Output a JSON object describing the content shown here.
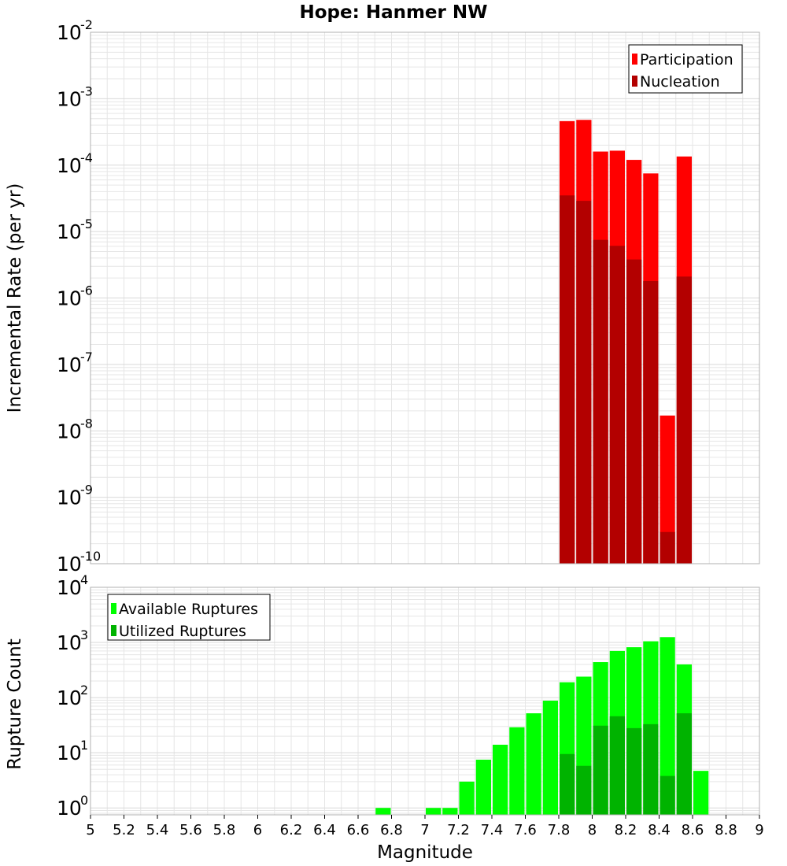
{
  "title": "Hope: Hanmer NW",
  "colors": {
    "participation": "#ff0000",
    "nucleation": "#b30000",
    "available": "#00ff00",
    "utilized": "#00b300",
    "grid": "#e6e6e6",
    "frame": "#b0b0b0"
  },
  "chart_data": [
    {
      "type": "bar",
      "name": "rate-panel",
      "ylabel": "Incremental Rate (per yr)",
      "yscale": "log",
      "ylim": [
        1e-10,
        0.01
      ],
      "xlim": [
        5,
        9
      ],
      "bin_width": 0.1,
      "legend_position": "top-right",
      "y_ticks": [
        {
          "base": "10",
          "exp": "-10",
          "value": 1e-10
        },
        {
          "base": "10",
          "exp": "-9",
          "value": 1e-09
        },
        {
          "base": "10",
          "exp": "-8",
          "value": 1e-08
        },
        {
          "base": "10",
          "exp": "-7",
          "value": 1e-07
        },
        {
          "base": "10",
          "exp": "-6",
          "value": 1e-06
        },
        {
          "base": "10",
          "exp": "-5",
          "value": 1e-05
        },
        {
          "base": "10",
          "exp": "-4",
          "value": 0.0001
        },
        {
          "base": "10",
          "exp": "-3",
          "value": 0.001
        },
        {
          "base": "10",
          "exp": "-2",
          "value": 0.01
        }
      ],
      "series": [
        {
          "name": "Participation",
          "colorKey": "participation",
          "x": [
            7.85,
            7.95,
            8.05,
            8.15,
            8.25,
            8.35,
            8.45,
            8.55
          ],
          "values": [
            0.00046,
            0.00048,
            0.00016,
            0.000165,
            0.00012,
            7.5e-05,
            1.7e-08,
            0.000135
          ]
        },
        {
          "name": "Nucleation",
          "colorKey": "nucleation",
          "x": [
            7.85,
            7.95,
            8.05,
            8.15,
            8.25,
            8.35,
            8.45,
            8.55
          ],
          "values": [
            3.5e-05,
            2.9e-05,
            7.5e-06,
            6.1e-06,
            3.8e-06,
            1.8e-06,
            3e-10,
            2.1e-06
          ]
        }
      ]
    },
    {
      "type": "bar",
      "name": "count-panel",
      "ylabel": "Rupture Count",
      "xlabel": "Magnitude",
      "yscale": "log",
      "ylim": [
        0.75,
        10000
      ],
      "xlim": [
        5,
        9
      ],
      "bin_width": 0.1,
      "legend_position": "top-left",
      "y_ticks": [
        {
          "base": "10",
          "exp": "0",
          "value": 1
        },
        {
          "base": "10",
          "exp": "1",
          "value": 10
        },
        {
          "base": "10",
          "exp": "2",
          "value": 100
        },
        {
          "base": "10",
          "exp": "3",
          "value": 1000
        },
        {
          "base": "10",
          "exp": "4",
          "value": 10000
        }
      ],
      "x_ticks": [
        "5",
        "5.2",
        "5.4",
        "5.6",
        "5.8",
        "6",
        "6.2",
        "6.4",
        "6.6",
        "6.8",
        "7",
        "7.2",
        "7.4",
        "7.6",
        "7.8",
        "8",
        "8.2",
        "8.4",
        "8.6",
        "8.8",
        "9"
      ],
      "series": [
        {
          "name": "Available Ruptures",
          "colorKey": "available",
          "x": [
            6.75,
            7.05,
            7.15,
            7.25,
            7.35,
            7.45,
            7.55,
            7.65,
            7.75,
            7.85,
            7.95,
            8.05,
            8.15,
            8.25,
            8.35,
            8.45,
            8.55,
            8.65
          ],
          "values": [
            1,
            1,
            1,
            3,
            7.5,
            14,
            29,
            52,
            88,
            190,
            240,
            440,
            700,
            820,
            1050,
            1250,
            400,
            4.7
          ]
        },
        {
          "name": "Utilized Ruptures",
          "colorKey": "utilized",
          "x": [
            7.85,
            7.95,
            8.05,
            8.15,
            8.25,
            8.35,
            8.45,
            8.55
          ],
          "values": [
            9.5,
            5.8,
            31,
            46,
            28,
            33,
            3.8,
            52
          ]
        }
      ]
    }
  ]
}
